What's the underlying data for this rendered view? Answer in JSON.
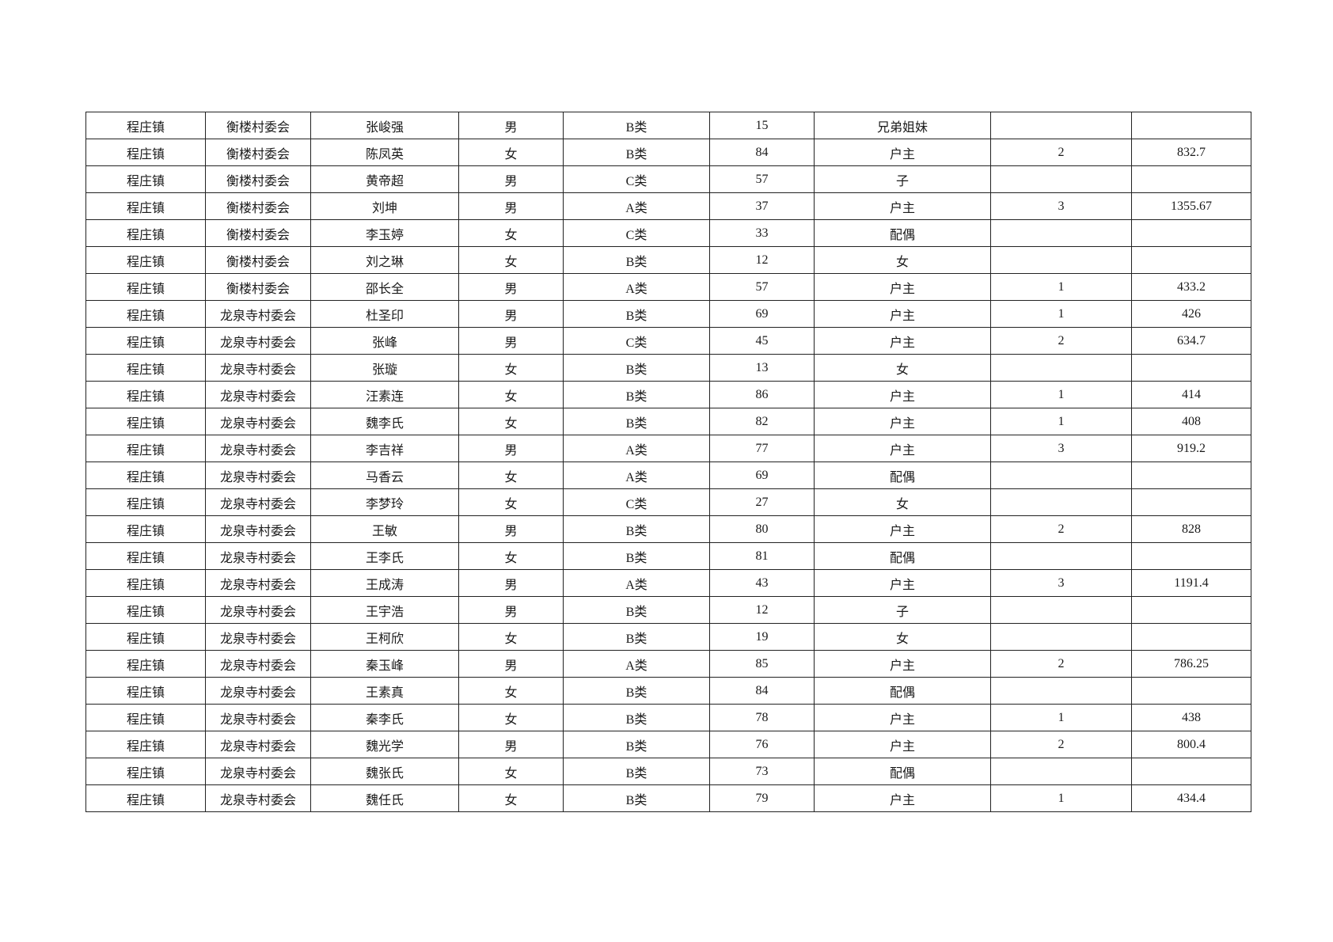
{
  "table": {
    "rows": [
      [
        "程庄镇",
        "衡楼村委会",
        "张峻强",
        "男",
        "B类",
        "15",
        "兄弟姐妹",
        "",
        ""
      ],
      [
        "程庄镇",
        "衡楼村委会",
        "陈凤英",
        "女",
        "B类",
        "84",
        "户主",
        "2",
        "832.7"
      ],
      [
        "程庄镇",
        "衡楼村委会",
        "黄帝超",
        "男",
        "C类",
        "57",
        "子",
        "",
        ""
      ],
      [
        "程庄镇",
        "衡楼村委会",
        "刘坤",
        "男",
        "A类",
        "37",
        "户主",
        "3",
        "1355.67"
      ],
      [
        "程庄镇",
        "衡楼村委会",
        "李玉婷",
        "女",
        "C类",
        "33",
        "配偶",
        "",
        ""
      ],
      [
        "程庄镇",
        "衡楼村委会",
        "刘之琳",
        "女",
        "B类",
        "12",
        "女",
        "",
        ""
      ],
      [
        "程庄镇",
        "衡楼村委会",
        "邵长全",
        "男",
        "A类",
        "57",
        "户主",
        "1",
        "433.2"
      ],
      [
        "程庄镇",
        "龙泉寺村委会",
        "杜圣印",
        "男",
        "B类",
        "69",
        "户主",
        "1",
        "426"
      ],
      [
        "程庄镇",
        "龙泉寺村委会",
        "张峰",
        "男",
        "C类",
        "45",
        "户主",
        "2",
        "634.7"
      ],
      [
        "程庄镇",
        "龙泉寺村委会",
        "张璇",
        "女",
        "B类",
        "13",
        "女",
        "",
        ""
      ],
      [
        "程庄镇",
        "龙泉寺村委会",
        "汪素连",
        "女",
        "B类",
        "86",
        "户主",
        "1",
        "414"
      ],
      [
        "程庄镇",
        "龙泉寺村委会",
        "魏李氏",
        "女",
        "B类",
        "82",
        "户主",
        "1",
        "408"
      ],
      [
        "程庄镇",
        "龙泉寺村委会",
        "李吉祥",
        "男",
        "A类",
        "77",
        "户主",
        "3",
        "919.2"
      ],
      [
        "程庄镇",
        "龙泉寺村委会",
        "马香云",
        "女",
        "A类",
        "69",
        "配偶",
        "",
        ""
      ],
      [
        "程庄镇",
        "龙泉寺村委会",
        "李梦玲",
        "女",
        "C类",
        "27",
        "女",
        "",
        ""
      ],
      [
        "程庄镇",
        "龙泉寺村委会",
        "王敏",
        "男",
        "B类",
        "80",
        "户主",
        "2",
        "828"
      ],
      [
        "程庄镇",
        "龙泉寺村委会",
        "王李氏",
        "女",
        "B类",
        "81",
        "配偶",
        "",
        ""
      ],
      [
        "程庄镇",
        "龙泉寺村委会",
        "王成涛",
        "男",
        "A类",
        "43",
        "户主",
        "3",
        "1191.4"
      ],
      [
        "程庄镇",
        "龙泉寺村委会",
        "王宇浩",
        "男",
        "B类",
        "12",
        "子",
        "",
        ""
      ],
      [
        "程庄镇",
        "龙泉寺村委会",
        "王柯欣",
        "女",
        "B类",
        "19",
        "女",
        "",
        ""
      ],
      [
        "程庄镇",
        "龙泉寺村委会",
        "秦玉峰",
        "男",
        "A类",
        "85",
        "户主",
        "2",
        "786.25"
      ],
      [
        "程庄镇",
        "龙泉寺村委会",
        "王素真",
        "女",
        "B类",
        "84",
        "配偶",
        "",
        ""
      ],
      [
        "程庄镇",
        "龙泉寺村委会",
        "秦李氏",
        "女",
        "B类",
        "78",
        "户主",
        "1",
        "438"
      ],
      [
        "程庄镇",
        "龙泉寺村委会",
        "魏光学",
        "男",
        "B类",
        "76",
        "户主",
        "2",
        "800.4"
      ],
      [
        "程庄镇",
        "龙泉寺村委会",
        "魏张氏",
        "女",
        "B类",
        "73",
        "配偶",
        "",
        ""
      ],
      [
        "程庄镇",
        "龙泉寺村委会",
        "魏任氏",
        "女",
        "B类",
        "79",
        "户主",
        "1",
        "434.4"
      ]
    ]
  }
}
